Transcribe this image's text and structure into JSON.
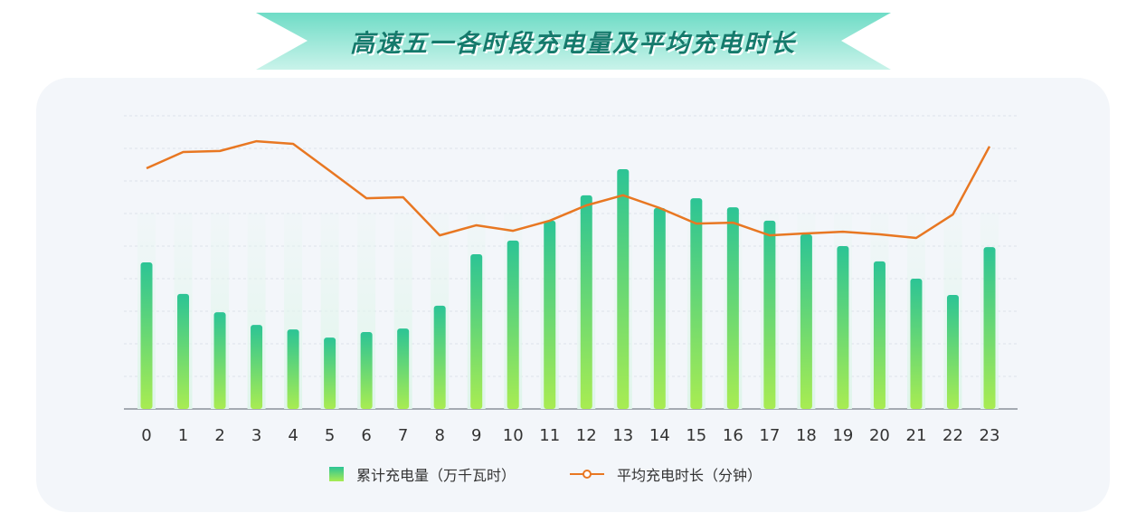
{
  "chart_data": {
    "type": "bar",
    "title": "高速五一各时段充电量及平均充电时长",
    "categories": [
      "0",
      "1",
      "2",
      "3",
      "4",
      "5",
      "6",
      "7",
      "8",
      "9",
      "10",
      "11",
      "12",
      "13",
      "14",
      "15",
      "16",
      "17",
      "18",
      "19",
      "20",
      "21",
      "22",
      "23"
    ],
    "ylim": [
      0,
      9
    ],
    "grid": true,
    "legend_placement": "bottom",
    "series": [
      {
        "name": "累计充电量（万千瓦时）",
        "type": "bar",
        "color": "#2cc495",
        "color_bottom": "#a8ec52",
        "values": [
          4.5,
          3.53,
          2.97,
          2.58,
          2.44,
          2.19,
          2.36,
          2.47,
          3.17,
          4.75,
          5.17,
          5.78,
          6.56,
          7.36,
          6.17,
          6.47,
          6.19,
          5.78,
          5.36,
          5.0,
          4.53,
          4.0,
          3.5,
          4.97
        ]
      },
      {
        "name": "平均充电时长（分钟）",
        "type": "line",
        "color": "#e87722",
        "values": [
          7.39,
          7.89,
          7.92,
          8.22,
          8.14,
          7.31,
          6.47,
          6.5,
          5.33,
          5.64,
          5.47,
          5.78,
          6.25,
          6.56,
          6.17,
          5.69,
          5.72,
          5.33,
          5.39,
          5.44,
          5.36,
          5.25,
          5.97,
          8.06
        ]
      }
    ]
  }
}
